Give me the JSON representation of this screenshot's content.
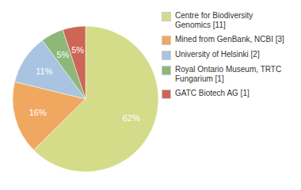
{
  "chart_data": {
    "type": "pie",
    "categories": [
      "Centre for Biodiversity\nGenomics [11]",
      "Mined from GenBank, NCBI [3]",
      "University of Helsinki [2]",
      "Royal Ontario Museum, TRTC\nFungarium [1]",
      "GATC Biotech AG [1]"
    ],
    "values": [
      62,
      16,
      11,
      5,
      5
    ],
    "value_labels": [
      "62%",
      "16%",
      "11%",
      "5%",
      "5%"
    ],
    "colors": [
      "#d4dc8a",
      "#f0a860",
      "#a8c4e0",
      "#8db87a",
      "#cc6655"
    ],
    "data_labels": true,
    "legend": "upper right"
  }
}
